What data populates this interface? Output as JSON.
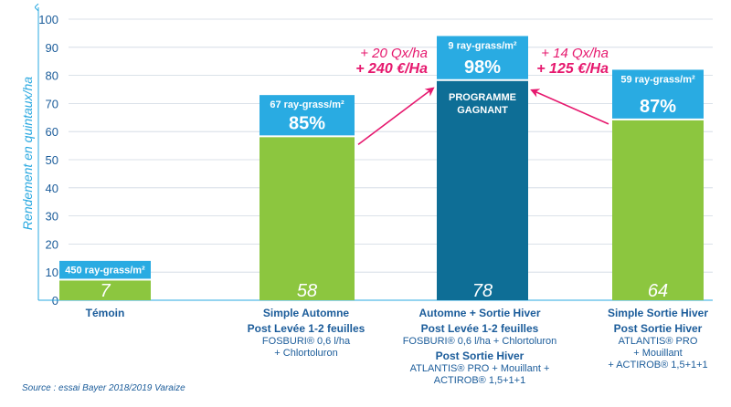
{
  "chart_data": {
    "type": "bar",
    "ylabel": "Rendement en quintaux/ha",
    "ylim": [
      0,
      100
    ],
    "yticks": [
      0,
      10,
      20,
      30,
      40,
      50,
      60,
      70,
      80,
      90,
      100
    ],
    "colors": {
      "green": "#8cc63f",
      "light_blue": "#29abe2",
      "dark_blue": "#0e6e96",
      "axis": "#29a8e0",
      "text": "#1b5c9a",
      "gain": "#e6186e"
    },
    "bars": [
      {
        "value": 7,
        "value_label": "7",
        "color": "green",
        "box_count": "450 ray-grass/m²",
        "box_pct": "",
        "box_top": 14
      },
      {
        "value": 58,
        "value_label": "58",
        "color": "green",
        "box_count": "67 ray-grass/m²",
        "box_pct": "85%",
        "box_top": 73
      },
      {
        "value": 78,
        "value_label": "78",
        "color": "dark_blue",
        "box_count": "9 ray-grass/m²",
        "box_pct": "98%",
        "box_top": 94,
        "inner_label_1": "PROGRAMME",
        "inner_label_2": "GAGNANT"
      },
      {
        "value": 64,
        "value_label": "64",
        "color": "green",
        "box_count": "59 ray-grass/m²",
        "box_pct": "87%",
        "box_top": 82
      }
    ],
    "categories": [
      {
        "title": "Témoin",
        "lines": []
      },
      {
        "title": "Simple Automne",
        "sub_title": "Post Levée 1-2 feuilles",
        "lines": [
          "FOSBURI® 0,6 l/ha",
          "+ Chlortoluron"
        ]
      },
      {
        "title": "Automne + Sortie Hiver",
        "sub_title": "Post Levée 1-2 feuilles",
        "lines": [
          "FOSBURI® 0,6 l/ha + Chlortoluron"
        ],
        "sub_title_2": "Post Sortie Hiver",
        "lines_2": [
          "ATLANTIS® PRO + Mouillant +",
          "ACTIROB® 1,5+1+1"
        ]
      },
      {
        "title": "Simple Sortie Hiver",
        "sub_title": "Post Sortie Hiver",
        "lines": [
          "ATLANTIS® PRO",
          "+ Mouillant",
          "+ ACTIROB® 1,5+1+1"
        ]
      }
    ],
    "annotations": [
      {
        "qx": "+ 20 Qx/ha",
        "euro": "+ 240 €/Ha"
      },
      {
        "qx": "+ 14 Qx/ha",
        "euro": "+ 125 €/Ha"
      }
    ]
  },
  "source": "Source : essai Bayer 2018/2019 Varaize"
}
